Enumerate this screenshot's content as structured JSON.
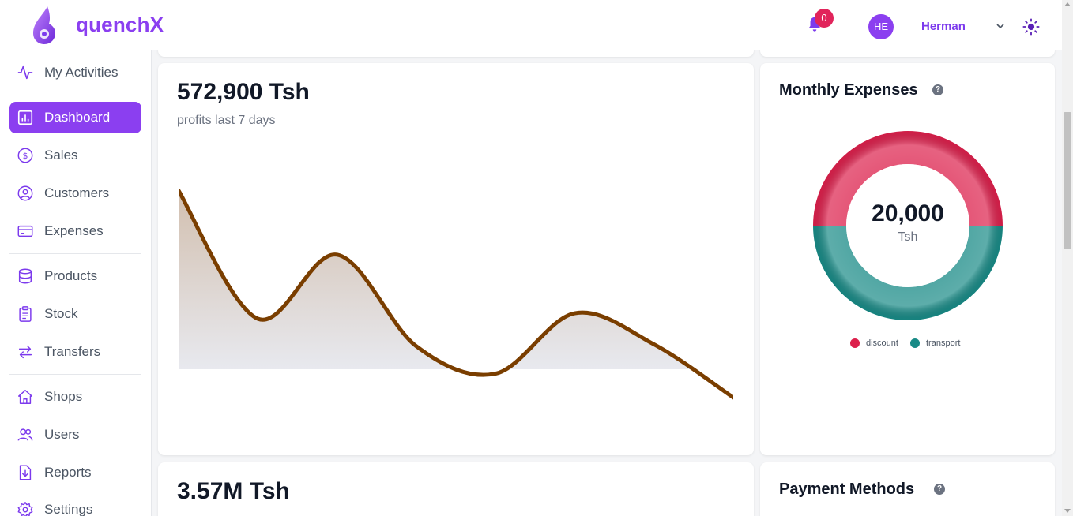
{
  "header": {
    "brand": "quenchX",
    "notification_count": "0",
    "avatar_initials": "HE",
    "username": "Herman"
  },
  "sidebar": {
    "items": [
      {
        "label": "My Activities",
        "icon": "activity-icon"
      },
      {
        "label": "Dashboard",
        "icon": "chart-icon",
        "active": true
      },
      {
        "label": "Sales",
        "icon": "dollar-icon"
      },
      {
        "label": "Customers",
        "icon": "user-circle-icon"
      },
      {
        "label": "Expenses",
        "icon": "credit-card-icon"
      },
      {
        "label": "Products",
        "icon": "database-icon"
      },
      {
        "label": "Stock",
        "icon": "clipboard-icon"
      },
      {
        "label": "Transfers",
        "icon": "arrows-exchange-icon"
      },
      {
        "label": "Shops",
        "icon": "home-icon"
      },
      {
        "label": "Users",
        "icon": "users-icon"
      },
      {
        "label": "Reports",
        "icon": "report-download-icon"
      },
      {
        "label": "Settings",
        "icon": "gear-icon"
      }
    ]
  },
  "profit_card": {
    "value": "572,900 Tsh",
    "label": "profits last 7 days"
  },
  "monthly_expenses": {
    "title": "Monthly Expenses",
    "help": "?",
    "center_value": "20,000",
    "center_unit": "Tsh",
    "legend": [
      {
        "label": "discount",
        "color": "#dc1f4b"
      },
      {
        "label": "transport",
        "color": "#188a86"
      }
    ]
  },
  "second_card": {
    "value": "3.57M Tsh"
  },
  "payment_methods": {
    "title": "Payment Methods",
    "help": "?"
  },
  "colors": {
    "accent": "#8b3ff0",
    "line": "#7a3e00",
    "discount": "#dc1f4b",
    "transport": "#188a86",
    "badge": "#e1245b"
  },
  "chart_data": [
    {
      "type": "area",
      "x": [
        1,
        2,
        3,
        4,
        5,
        6,
        7,
        8
      ],
      "series": [
        {
          "values": [
            95,
            25,
            60,
            10,
            -5,
            28,
            11,
            -18
          ]
        }
      ],
      "ylim": [
        -25,
        100
      ]
    },
    {
      "type": "pie",
      "donut": true,
      "categories": [
        "discount",
        "transport"
      ],
      "values": [
        10000,
        10000
      ]
    }
  ]
}
